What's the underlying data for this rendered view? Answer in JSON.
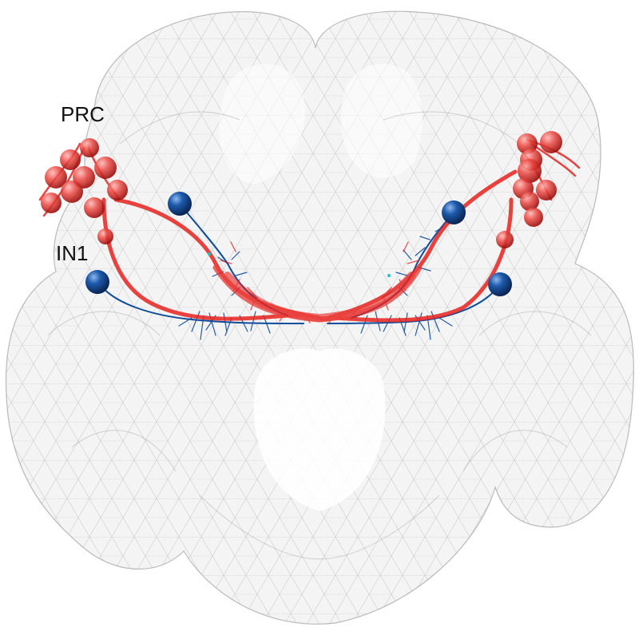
{
  "labels": {
    "prc": "PRC",
    "in1": "IN1"
  },
  "colors": {
    "background": "#ffffff",
    "brain_mesh_fill": "#f1f1f1",
    "brain_mesh_edge": "#9a9a9a",
    "prc_neurons": "#e8231f",
    "in1_neurons": "#0f4c9a",
    "in1_soma": "#123f80",
    "minor_accent": "#18c6c9"
  },
  "scene_objects": {
    "brain_mesh": "translucent-brain-mesh",
    "prc_somas": "red-sphere-cluster",
    "in1_somas": "blue-sphere",
    "projections": "neuron-arbor"
  }
}
